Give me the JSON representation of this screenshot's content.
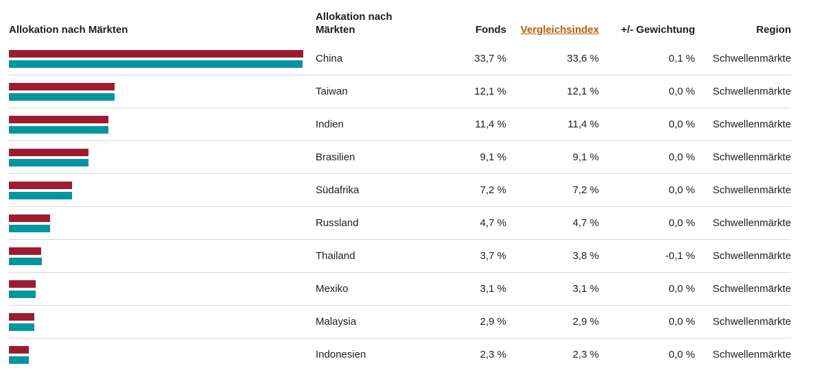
{
  "header": {
    "chart_title": "Allokation nach Märkten",
    "columns": {
      "market": "Allokation nach Märkten",
      "fonds": "Fonds",
      "index": "Vergleichsindex",
      "weight": "+/- Gewichtung",
      "region": "Region"
    }
  },
  "colors": {
    "fonds_bar": "#9e1b32",
    "index_bar": "#0096a0",
    "index_header_text": "#b25e00",
    "row_divider": "#d6d6d6",
    "text": "#1d1d1b"
  },
  "rows": [
    {
      "market": "China",
      "fonds": "33,7 %",
      "index": "33,6 %",
      "weight": "0,1 %",
      "region": "Schwellenmärkte",
      "fonds_value": 33.7,
      "index_value": 33.6
    },
    {
      "market": "Taiwan",
      "fonds": "12,1 %",
      "index": "12,1 %",
      "weight": "0,0 %",
      "region": "Schwellenmärkte",
      "fonds_value": 12.1,
      "index_value": 12.1
    },
    {
      "market": "Indien",
      "fonds": "11,4 %",
      "index": "11,4 %",
      "weight": "0,0 %",
      "region": "Schwellenmärkte",
      "fonds_value": 11.4,
      "index_value": 11.4
    },
    {
      "market": "Brasilien",
      "fonds": "9,1 %",
      "index": "9,1 %",
      "weight": "0,0 %",
      "region": "Schwellenmärkte",
      "fonds_value": 9.1,
      "index_value": 9.1
    },
    {
      "market": "Südafrika",
      "fonds": "7,2 %",
      "index": "7,2 %",
      "weight": "0,0 %",
      "region": "Schwellenmärkte",
      "fonds_value": 7.2,
      "index_value": 7.2
    },
    {
      "market": "Russland",
      "fonds": "4,7 %",
      "index": "4,7 %",
      "weight": "0,0 %",
      "region": "Schwellenmärkte",
      "fonds_value": 4.7,
      "index_value": 4.7
    },
    {
      "market": "Thailand",
      "fonds": "3,7 %",
      "index": "3,8 %",
      "weight": "-0,1 %",
      "region": "Schwellenmärkte",
      "fonds_value": 3.7,
      "index_value": 3.8
    },
    {
      "market": "Mexiko",
      "fonds": "3,1 %",
      "index": "3,1 %",
      "weight": "0,0 %",
      "region": "Schwellenmärkte",
      "fonds_value": 3.1,
      "index_value": 3.1
    },
    {
      "market": "Malaysia",
      "fonds": "2,9 %",
      "index": "2,9 %",
      "weight": "0,0 %",
      "region": "Schwellenmärkte",
      "fonds_value": 2.9,
      "index_value": 2.9
    },
    {
      "market": "Indonesien",
      "fonds": "2,3 %",
      "index": "2,3 %",
      "weight": "0,0 %",
      "region": "Schwellenmärkte",
      "fonds_value": 2.3,
      "index_value": 2.3
    }
  ],
  "chart_data": {
    "type": "bar",
    "title": "Allokation nach Märkten",
    "orientation": "horizontal",
    "categories": [
      "China",
      "Taiwan",
      "Indien",
      "Brasilien",
      "Südafrika",
      "Russland",
      "Thailand",
      "Mexiko",
      "Malaysia",
      "Indonesien"
    ],
    "series": [
      {
        "name": "Fonds",
        "color": "#9e1b32",
        "values": [
          33.7,
          12.1,
          11.4,
          9.1,
          7.2,
          4.7,
          3.7,
          3.1,
          2.9,
          2.3
        ]
      },
      {
        "name": "Vergleichsindex",
        "color": "#0096a0",
        "values": [
          33.6,
          12.1,
          11.4,
          9.1,
          7.2,
          4.7,
          3.8,
          3.1,
          2.9,
          2.3
        ]
      }
    ],
    "xlabel": "",
    "ylabel": "",
    "xlim": [
      0,
      33.7
    ],
    "unit": "%",
    "grid": false,
    "legend_position": "none"
  }
}
